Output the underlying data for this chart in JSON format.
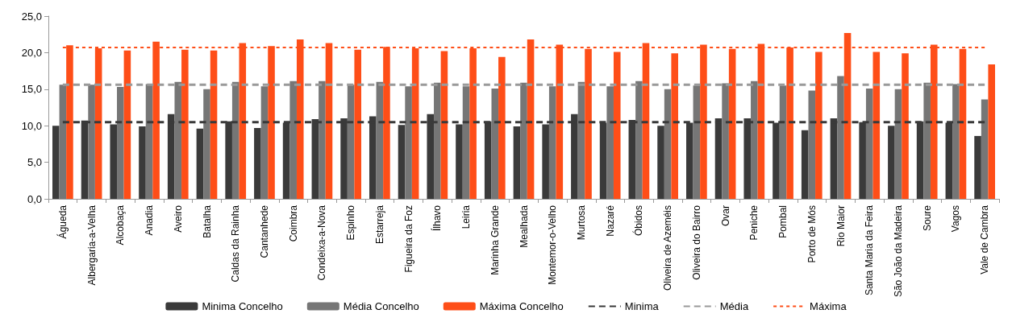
{
  "chart_data": {
    "type": "bar",
    "categories": [
      "Águeda",
      "Albergaria-a-Velha",
      "Alcobaça",
      "Anadia",
      "Aveiro",
      "Batalha",
      "Caldas da Rainha",
      "Cantanhede",
      "Coimbra",
      "Condeixa-a-Nova",
      "Espinho",
      "Estarreja",
      "Figueira da Foz",
      "Ílhavo",
      "Leiria",
      "Marinha Grande",
      "Mealhada",
      "Montemor-o-Velho",
      "Murtosa",
      "Nazaré",
      "Óbidos",
      "Oliveira de Azeméis",
      "Oliveira do Bairro",
      "Ovar",
      "Peniche",
      "Pombal",
      "Porto de Mós",
      "Rio Maior",
      "Santa Maria da Feira",
      "São João da Madeira",
      "Soure",
      "Vagos",
      "Vale de Cambra"
    ],
    "series": [
      {
        "name": "Minima Concelho",
        "color": "#3a3a3a",
        "values": [
          10.0,
          10.7,
          10.2,
          9.9,
          11.6,
          9.6,
          10.6,
          9.7,
          10.4,
          10.9,
          11.0,
          11.3,
          10.1,
          11.6,
          10.2,
          10.6,
          9.9,
          10.2,
          11.6,
          10.4,
          10.8,
          10.0,
          10.4,
          11.0,
          11.0,
          10.4,
          9.4,
          11.0,
          10.5,
          10.0,
          10.6,
          10.4,
          8.6
        ]
      },
      {
        "name": "Média Concelho",
        "color": "#767676",
        "values": [
          15.6,
          15.6,
          15.3,
          15.7,
          16.0,
          15.0,
          16.0,
          15.4,
          16.1,
          16.1,
          15.6,
          16.0,
          15.4,
          15.9,
          15.4,
          15.1,
          15.9,
          15.4,
          16.0,
          15.4,
          16.1,
          15.0,
          15.5,
          15.8,
          16.1,
          15.5,
          14.8,
          16.8,
          15.1,
          15.0,
          15.9,
          15.7,
          13.6
        ]
      },
      {
        "name": "Máxima Concelho",
        "color": "#fe4e18",
        "values": [
          21.0,
          20.6,
          20.3,
          21.5,
          20.4,
          20.3,
          21.3,
          20.9,
          21.8,
          21.3,
          20.4,
          20.8,
          20.6,
          20.2,
          20.6,
          19.4,
          21.8,
          21.1,
          20.5,
          20.1,
          21.3,
          19.9,
          21.1,
          20.5,
          21.2,
          20.7,
          20.1,
          22.7,
          20.1,
          19.9,
          21.1,
          20.5,
          18.4
        ]
      },
      {
        "name": "Minima",
        "type": "line",
        "line_style": "dashed",
        "color": "#3a3a3a",
        "values": [
          10.5,
          10.5,
          10.5,
          10.5,
          10.5,
          10.5,
          10.5,
          10.5,
          10.5,
          10.5,
          10.5,
          10.5,
          10.5,
          10.5,
          10.5,
          10.5,
          10.5,
          10.5,
          10.5,
          10.5,
          10.5,
          10.5,
          10.5,
          10.5,
          10.5,
          10.5,
          10.5,
          10.5,
          10.5,
          10.5,
          10.5,
          10.5,
          10.5
        ]
      },
      {
        "name": "Média",
        "type": "line",
        "line_style": "dashed",
        "color": "#9a9a9a",
        "values": [
          15.6,
          15.6,
          15.6,
          15.6,
          15.6,
          15.6,
          15.6,
          15.6,
          15.6,
          15.6,
          15.6,
          15.6,
          15.6,
          15.6,
          15.6,
          15.6,
          15.6,
          15.6,
          15.6,
          15.6,
          15.6,
          15.6,
          15.6,
          15.6,
          15.6,
          15.6,
          15.6,
          15.6,
          15.6,
          15.6,
          15.6,
          15.6,
          15.6
        ]
      },
      {
        "name": "Máxima",
        "type": "line",
        "line_style": "dotted",
        "color": "#fe4e18",
        "values": [
          20.7,
          20.7,
          20.7,
          20.7,
          20.7,
          20.7,
          20.7,
          20.7,
          20.7,
          20.7,
          20.7,
          20.7,
          20.7,
          20.7,
          20.7,
          20.7,
          20.7,
          20.7,
          20.7,
          20.7,
          20.7,
          20.7,
          20.7,
          20.7,
          20.7,
          20.7,
          20.7,
          20.7,
          20.7,
          20.7,
          20.7,
          20.7,
          20.7
        ]
      }
    ],
    "ylim": [
      0,
      25
    ],
    "yticks": [
      {
        "value": 0,
        "label": "0,0"
      },
      {
        "value": 5,
        "label": "5,0"
      },
      {
        "value": 10,
        "label": "10,0"
      },
      {
        "value": 15,
        "label": "15,0"
      },
      {
        "value": 20,
        "label": "20,0"
      },
      {
        "value": 25,
        "label": "25,0"
      }
    ],
    "grid": false,
    "legend": "bottom",
    "marker": "none"
  }
}
